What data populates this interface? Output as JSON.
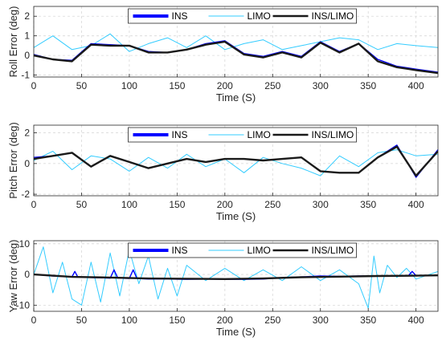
{
  "colors": {
    "ins": "#0000ff",
    "limo": "#33ccff",
    "fused": "#1a1a1a"
  },
  "chart_data": [
    {
      "type": "line",
      "xlabel": "Time (S)",
      "ylabel": "Roll Error (deg)",
      "xlim": [
        0,
        423
      ],
      "ylim": [
        -1.1,
        2.5
      ],
      "xticks": [
        0,
        50,
        100,
        150,
        200,
        250,
        300,
        350,
        400
      ],
      "yticks": [
        -1,
        0,
        1,
        2
      ],
      "grid": true,
      "legend_position": "top-center",
      "legend": [
        "INS",
        "LIMO",
        "INS/LIMO"
      ],
      "series": [
        {
          "name": "INS",
          "x": [
            0,
            20,
            40,
            60,
            80,
            100,
            120,
            140,
            160,
            180,
            200,
            220,
            240,
            260,
            280,
            300,
            320,
            340,
            360,
            380,
            400,
            423
          ],
          "values": [
            0.05,
            -0.2,
            -0.25,
            0.6,
            0.55,
            0.5,
            0.2,
            0.15,
            0.3,
            0.6,
            0.75,
            0.1,
            -0.05,
            0.2,
            -0.05,
            0.7,
            0.2,
            0.6,
            -0.2,
            -0.55,
            -0.7,
            -0.85
          ]
        },
        {
          "name": "LIMO",
          "x": [
            0,
            20,
            40,
            60,
            80,
            100,
            120,
            140,
            160,
            180,
            200,
            220,
            240,
            260,
            280,
            300,
            320,
            340,
            360,
            380,
            400,
            423
          ],
          "values": [
            0.4,
            1.0,
            0.3,
            0.5,
            1.1,
            0.2,
            0.6,
            0.9,
            0.4,
            1.0,
            0.3,
            0.6,
            0.8,
            0.3,
            0.5,
            0.7,
            0.9,
            0.8,
            0.3,
            0.6,
            0.5,
            0.4
          ]
        },
        {
          "name": "INS/LIMO",
          "x": [
            0,
            20,
            40,
            60,
            80,
            100,
            120,
            140,
            160,
            180,
            200,
            220,
            240,
            260,
            280,
            300,
            320,
            340,
            360,
            380,
            400,
            423
          ],
          "values": [
            0.0,
            -0.2,
            -0.3,
            0.55,
            0.5,
            0.5,
            0.15,
            0.15,
            0.3,
            0.55,
            0.7,
            0.05,
            -0.1,
            0.15,
            -0.1,
            0.65,
            0.15,
            0.6,
            -0.3,
            -0.6,
            -0.75,
            -0.9
          ]
        }
      ]
    },
    {
      "type": "line",
      "xlabel": "Time (S)",
      "ylabel": "Pitch Error (deg)",
      "xlim": [
        0,
        423
      ],
      "ylim": [
        -2.1,
        2.5
      ],
      "xticks": [
        0,
        50,
        100,
        150,
        200,
        250,
        300,
        350,
        400
      ],
      "yticks": [
        -2,
        0,
        2
      ],
      "grid": true,
      "legend_position": "top-center",
      "legend": [
        "INS",
        "LIMO",
        "INS/LIMO"
      ],
      "series": [
        {
          "name": "INS",
          "x": [
            0,
            20,
            40,
            60,
            80,
            100,
            120,
            140,
            160,
            180,
            200,
            220,
            240,
            260,
            280,
            300,
            320,
            340,
            360,
            380,
            400,
            423
          ],
          "values": [
            0.4,
            0.5,
            0.7,
            -0.2,
            0.5,
            0.1,
            -0.3,
            0.0,
            0.3,
            0.1,
            0.3,
            0.3,
            0.2,
            0.3,
            0.4,
            -0.5,
            -0.6,
            -0.6,
            0.4,
            1.2,
            -0.9,
            0.9
          ]
        },
        {
          "name": "LIMO",
          "x": [
            0,
            20,
            40,
            60,
            80,
            100,
            120,
            140,
            160,
            180,
            200,
            220,
            240,
            260,
            280,
            300,
            320,
            340,
            360,
            380,
            400,
            423
          ],
          "values": [
            0.2,
            0.8,
            -0.4,
            0.5,
            0.3,
            -0.5,
            0.4,
            -0.3,
            0.6,
            -0.2,
            0.3,
            -0.6,
            0.4,
            0.0,
            -0.3,
            -0.8,
            0.5,
            -0.2,
            0.7,
            0.9,
            0.5,
            0.6
          ]
        },
        {
          "name": "INS/LIMO",
          "x": [
            0,
            20,
            40,
            60,
            80,
            100,
            120,
            140,
            160,
            180,
            200,
            220,
            240,
            260,
            280,
            300,
            320,
            340,
            360,
            380,
            400,
            423
          ],
          "values": [
            0.3,
            0.5,
            0.7,
            -0.2,
            0.5,
            0.1,
            -0.3,
            0.0,
            0.3,
            0.1,
            0.3,
            0.3,
            0.2,
            0.3,
            0.4,
            -0.5,
            -0.6,
            -0.6,
            0.4,
            1.1,
            -0.8,
            0.8
          ]
        }
      ]
    },
    {
      "type": "line",
      "xlabel": "Time (S)",
      "ylabel": "Yaw Error (deg)",
      "xlim": [
        0,
        423
      ],
      "ylim": [
        -12,
        11
      ],
      "xticks": [
        0,
        50,
        100,
        150,
        200,
        250,
        300,
        350,
        400
      ],
      "yticks": [
        -10,
        0,
        10
      ],
      "grid": true,
      "legend_position": "top-center",
      "legend": [
        "INS",
        "LIMO",
        "INS/LIMO"
      ],
      "series": [
        {
          "name": "INS",
          "x": [
            0,
            20,
            40,
            43,
            46,
            60,
            80,
            84,
            88,
            100,
            104,
            108,
            120,
            140,
            160,
            180,
            200,
            220,
            240,
            260,
            280,
            300,
            320,
            340,
            360,
            380,
            392,
            396,
            400,
            423
          ],
          "values": [
            0.0,
            -0.5,
            -0.8,
            1.0,
            -0.8,
            -1.0,
            -1.2,
            1.5,
            -1.2,
            -1.3,
            1.5,
            -1.3,
            -1.5,
            -1.5,
            -1.6,
            -1.5,
            -1.6,
            -1.6,
            -1.5,
            -1.0,
            -0.8,
            -0.5,
            -0.6,
            -0.5,
            -0.5,
            -0.5,
            -0.4,
            1.0,
            -0.4,
            -0.3
          ]
        },
        {
          "name": "LIMO",
          "x": [
            0,
            10,
            20,
            30,
            40,
            50,
            60,
            70,
            80,
            90,
            100,
            110,
            120,
            130,
            140,
            150,
            160,
            180,
            200,
            220,
            240,
            260,
            280,
            300,
            320,
            340,
            350,
            356,
            362,
            370,
            380,
            390,
            400,
            423
          ],
          "values": [
            0.0,
            9.0,
            -6.0,
            4.0,
            -8.0,
            -10.0,
            4.0,
            -9.0,
            7.0,
            -7.0,
            8.0,
            -3.0,
            6.0,
            -8.0,
            2.0,
            -7.0,
            3.0,
            -2.0,
            2.0,
            -2.0,
            1.5,
            -2.0,
            2.5,
            -2.0,
            1.5,
            -3.0,
            -11.0,
            6.0,
            -6.0,
            3.0,
            -1.0,
            2.0,
            -1.5,
            1.0
          ]
        },
        {
          "name": "INS/LIMO",
          "x": [
            0,
            40,
            80,
            120,
            160,
            200,
            240,
            280,
            320,
            360,
            400,
            423
          ],
          "values": [
            0.0,
            -0.8,
            -1.0,
            -1.3,
            -1.4,
            -1.5,
            -1.3,
            -0.9,
            -0.7,
            -0.5,
            -0.4,
            -0.3
          ]
        }
      ]
    }
  ]
}
